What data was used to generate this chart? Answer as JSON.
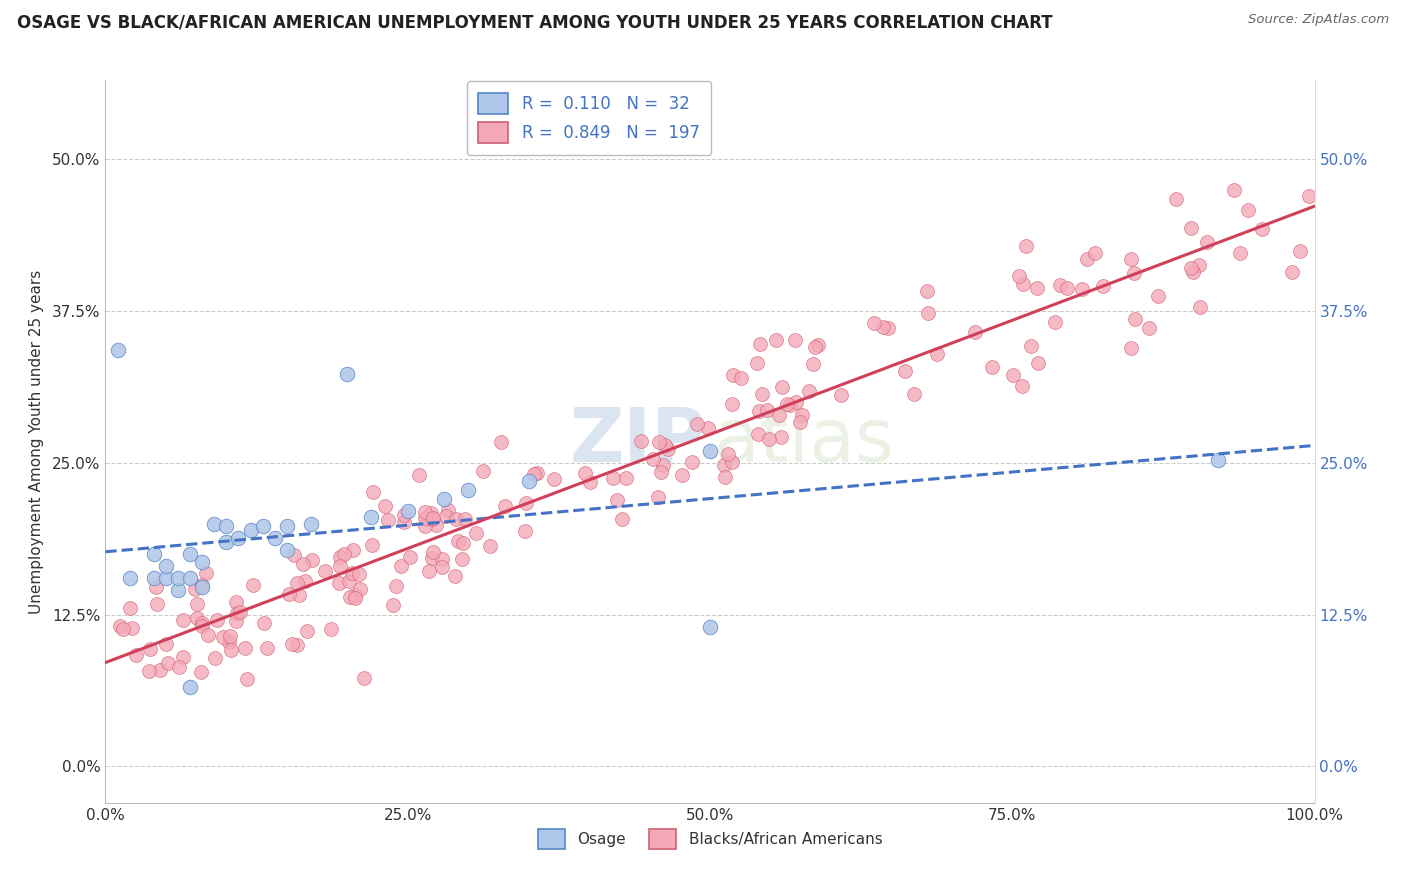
{
  "title": "OSAGE VS BLACK/AFRICAN AMERICAN UNEMPLOYMENT AMONG YOUTH UNDER 25 YEARS CORRELATION CHART",
  "source": "Source: ZipAtlas.com",
  "ylabel": "Unemployment Among Youth under 25 years",
  "xlim": [
    0.0,
    1.0
  ],
  "ylim": [
    -0.03,
    0.565
  ],
  "xticks": [
    0.0,
    0.25,
    0.5,
    0.75,
    1.0
  ],
  "xticklabels": [
    "0.0%",
    "25.0%",
    "50.0%",
    "75.0%",
    "100.0%"
  ],
  "yticks": [
    0.0,
    0.125,
    0.25,
    0.375,
    0.5
  ],
  "yticklabels": [
    "0.0%",
    "12.5%",
    "25.0%",
    "37.5%",
    "50.0%"
  ],
  "osage_fill_color": "#aec6e8",
  "pink_fill_color": "#f4a8b8",
  "osage_edge_color": "#5585c5",
  "pink_edge_color": "#d06070",
  "osage_line_color": "#4472c4",
  "pink_line_color": "#d0405a",
  "R_osage": 0.11,
  "N_osage": 32,
  "R_pink": 0.849,
  "N_pink": 197,
  "background_color": "#ffffff",
  "grid_color": "#cccccc",
  "legend_label_osage": "Osage",
  "legend_label_pink": "Blacks/African Americans",
  "watermark_zip": "ZIP",
  "watermark_atlas": "atlas",
  "title_color": "#222222",
  "source_color": "#666666",
  "tick_color": "#333333",
  "right_tick_color": "#4472c4"
}
